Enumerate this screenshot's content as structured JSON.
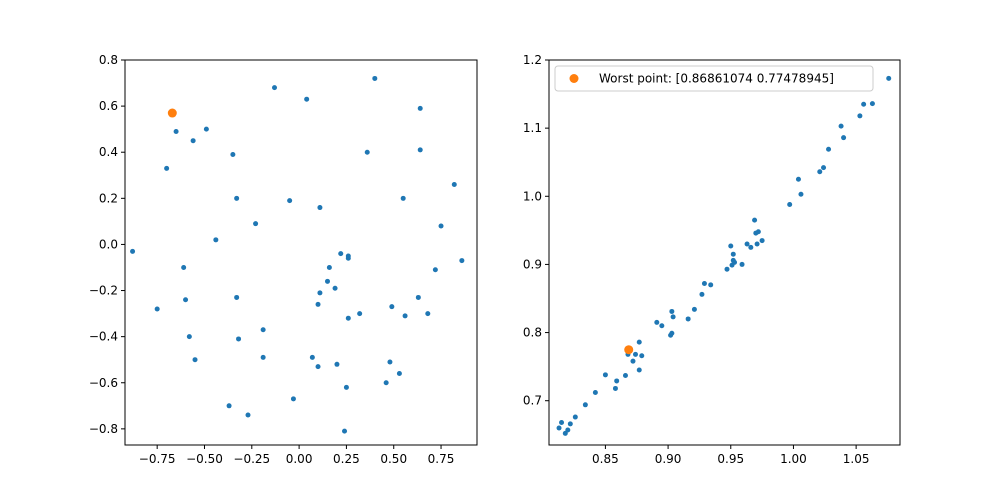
{
  "colors": {
    "blue": "#1f77b4",
    "orange": "#ff7f0e",
    "axis": "#000000",
    "background": "#ffffff",
    "legend_border": "#cccccc"
  },
  "chart_data": [
    {
      "type": "scatter",
      "title": "",
      "xlabel": "",
      "ylabel": "",
      "xlim": [
        -0.92,
        0.94
      ],
      "ylim": [
        -0.87,
        0.8
      ],
      "x_ticks": [
        -0.75,
        -0.5,
        -0.25,
        0.0,
        0.25,
        0.5,
        0.75
      ],
      "x_tick_labels": [
        "−0.75",
        "−0.50",
        "−0.25",
        "0.00",
        "0.25",
        "0.50",
        "0.75"
      ],
      "y_ticks": [
        -0.8,
        -0.6,
        -0.4,
        -0.2,
        0.0,
        0.2,
        0.4,
        0.6,
        0.8
      ],
      "y_tick_labels": [
        "−0.8",
        "−0.6",
        "−0.4",
        "−0.2",
        "0.0",
        "0.2",
        "0.4",
        "0.6",
        "0.8"
      ],
      "grid": false,
      "series": [
        {
          "color": "#1f77b4",
          "marker_size": "small",
          "points": [
            [
              -0.88,
              -0.03
            ],
            [
              -0.75,
              -0.28
            ],
            [
              -0.7,
              0.33
            ],
            [
              -0.65,
              0.49
            ],
            [
              -0.61,
              -0.1
            ],
            [
              -0.6,
              -0.24
            ],
            [
              -0.58,
              -0.4
            ],
            [
              -0.56,
              0.45
            ],
            [
              -0.55,
              -0.5
            ],
            [
              -0.49,
              0.5
            ],
            [
              -0.44,
              0.02
            ],
            [
              -0.37,
              -0.7
            ],
            [
              -0.35,
              0.39
            ],
            [
              -0.33,
              0.2
            ],
            [
              -0.33,
              -0.23
            ],
            [
              -0.32,
              -0.41
            ],
            [
              -0.27,
              -0.74
            ],
            [
              -0.23,
              0.09
            ],
            [
              -0.19,
              -0.37
            ],
            [
              -0.19,
              -0.49
            ],
            [
              -0.13,
              0.68
            ],
            [
              -0.05,
              0.19
            ],
            [
              -0.03,
              -0.67
            ],
            [
              0.04,
              0.63
            ],
            [
              0.07,
              -0.49
            ],
            [
              0.1,
              -0.53
            ],
            [
              0.1,
              -0.26
            ],
            [
              0.11,
              -0.21
            ],
            [
              0.11,
              0.16
            ],
            [
              0.15,
              -0.16
            ],
            [
              0.16,
              -0.1
            ],
            [
              0.19,
              -0.19
            ],
            [
              0.2,
              -0.52
            ],
            [
              0.22,
              -0.04
            ],
            [
              0.24,
              -0.81
            ],
            [
              0.25,
              -0.62
            ],
            [
              0.26,
              -0.05
            ],
            [
              0.26,
              -0.06
            ],
            [
              0.26,
              -0.32
            ],
            [
              0.32,
              -0.3
            ],
            [
              0.36,
              0.4
            ],
            [
              0.4,
              0.72
            ],
            [
              0.46,
              -0.6
            ],
            [
              0.48,
              -0.51
            ],
            [
              0.49,
              -0.27
            ],
            [
              0.53,
              -0.56
            ],
            [
              0.55,
              0.2
            ],
            [
              0.56,
              -0.31
            ],
            [
              0.63,
              -0.23
            ],
            [
              0.64,
              0.41
            ],
            [
              0.64,
              0.59
            ],
            [
              0.68,
              -0.3
            ],
            [
              0.72,
              -0.11
            ],
            [
              0.75,
              0.08
            ],
            [
              0.82,
              0.26
            ],
            [
              0.86,
              -0.07
            ]
          ]
        },
        {
          "color": "#ff7f0e",
          "marker_size": "large",
          "points": [
            [
              -0.67,
              0.57
            ]
          ]
        }
      ]
    },
    {
      "type": "scatter",
      "title": "",
      "xlabel": "",
      "ylabel": "",
      "xlim": [
        0.805,
        1.085
      ],
      "ylim": [
        0.635,
        1.2
      ],
      "x_ticks": [
        0.85,
        0.9,
        0.95,
        1.0,
        1.05
      ],
      "x_tick_labels": [
        "0.85",
        "0.90",
        "0.95",
        "1.00",
        "1.05"
      ],
      "y_ticks": [
        0.7,
        0.8,
        0.9,
        1.0,
        1.1,
        1.2
      ],
      "y_tick_labels": [
        "0.7",
        "0.8",
        "0.9",
        "1.0",
        "1.1",
        "1.2"
      ],
      "grid": false,
      "legend": {
        "placement": "top-left",
        "entries": [
          "Worst point: [0.86861074 0.77478945]"
        ]
      },
      "series": [
        {
          "color": "#1f77b4",
          "marker_size": "small",
          "points": [
            [
              0.813,
              0.66
            ],
            [
              0.815,
              0.668
            ],
            [
              0.818,
              0.652
            ],
            [
              0.82,
              0.657
            ],
            [
              0.822,
              0.666
            ],
            [
              0.826,
              0.676
            ],
            [
              0.834,
              0.694
            ],
            [
              0.842,
              0.712
            ],
            [
              0.85,
              0.738
            ],
            [
              0.858,
              0.718
            ],
            [
              0.859,
              0.729
            ],
            [
              0.866,
              0.737
            ],
            [
              0.868,
              0.768
            ],
            [
              0.872,
              0.758
            ],
            [
              0.874,
              0.768
            ],
            [
              0.877,
              0.786
            ],
            [
              0.877,
              0.745
            ],
            [
              0.879,
              0.766
            ],
            [
              0.891,
              0.815
            ],
            [
              0.895,
              0.81
            ],
            [
              0.902,
              0.796
            ],
            [
              0.903,
              0.799
            ],
            [
              0.903,
              0.831
            ],
            [
              0.904,
              0.823
            ],
            [
              0.916,
              0.82
            ],
            [
              0.921,
              0.834
            ],
            [
              0.927,
              0.856
            ],
            [
              0.929,
              0.872
            ],
            [
              0.934,
              0.87
            ],
            [
              0.947,
              0.893
            ],
            [
              0.95,
              0.927
            ],
            [
              0.951,
              0.899
            ],
            [
              0.952,
              0.906
            ],
            [
              0.952,
              0.915
            ],
            [
              0.953,
              0.903
            ],
            [
              0.959,
              0.9
            ],
            [
              0.963,
              0.93
            ],
            [
              0.966,
              0.925
            ],
            [
              0.969,
              0.965
            ],
            [
              0.97,
              0.946
            ],
            [
              0.971,
              0.93
            ],
            [
              0.972,
              0.948
            ],
            [
              0.975,
              0.935
            ],
            [
              0.997,
              0.988
            ],
            [
              1.004,
              1.025
            ],
            [
              1.006,
              1.003
            ],
            [
              1.021,
              1.036
            ],
            [
              1.024,
              1.042
            ],
            [
              1.028,
              1.069
            ],
            [
              1.038,
              1.103
            ],
            [
              1.04,
              1.086
            ],
            [
              1.053,
              1.118
            ],
            [
              1.056,
              1.135
            ],
            [
              1.063,
              1.136
            ],
            [
              1.076,
              1.173
            ]
          ]
        },
        {
          "color": "#ff7f0e",
          "marker_size": "large",
          "points": [
            [
              0.8686,
              0.7748
            ]
          ]
        }
      ]
    }
  ]
}
